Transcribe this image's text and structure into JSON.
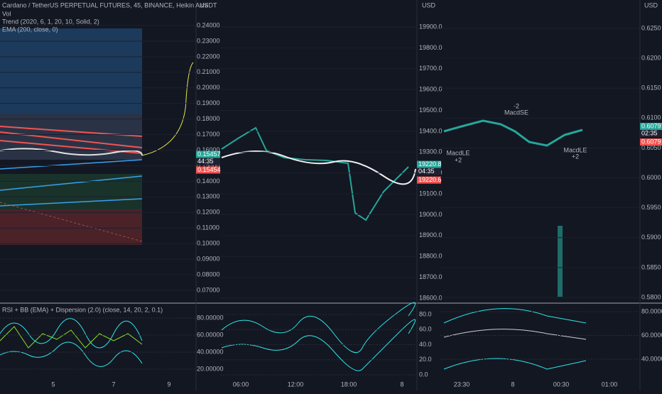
{
  "panels": [
    {
      "header": {
        "symbol": "Cardano / TetherUS PERPETUAL FUTURES, 45, BINANCE, Heikin Ashi",
        "indicators": [
          "Vol",
          "Trend (2020, 6, 1, 20, 10, Solid, 2)",
          "EMA (200, close, 0)"
        ]
      },
      "currency": "USDT",
      "price_ticks": [
        {
          "value": 0.24,
          "label": "0.24000"
        },
        {
          "value": 0.23,
          "label": "0.23000"
        },
        {
          "value": 0.22,
          "label": "0.22000"
        },
        {
          "value": 0.21,
          "label": "0.21000"
        },
        {
          "value": 0.2,
          "label": "0.20000"
        },
        {
          "value": 0.19,
          "label": "0.19000"
        },
        {
          "value": 0.18,
          "label": "0.18000"
        },
        {
          "value": 0.17,
          "label": "0.17000"
        },
        {
          "value": 0.16,
          "label": "0.16000"
        },
        {
          "value": 0.15,
          "label": "0.15000"
        },
        {
          "value": 0.14,
          "label": "0.14000"
        },
        {
          "value": 0.13,
          "label": "0.13000"
        },
        {
          "value": 0.12,
          "label": "0.12000"
        },
        {
          "value": 0.11,
          "label": "0.11000"
        },
        {
          "value": 0.1,
          "label": "0.10000"
        },
        {
          "value": 0.09,
          "label": "0.09000"
        },
        {
          "value": 0.08,
          "label": "0.08000"
        },
        {
          "value": 0.07,
          "label": "0.07000"
        }
      ],
      "last_price": {
        "value": 0.15457,
        "label": "0.15457"
      },
      "countdown": "44:35",
      "prev_price": {
        "value": 0.15454,
        "label": "0.15454"
      },
      "oscillator": {
        "title": "RSI + BB (EMA) + Dispersion (2.0) (close, 14, 20, 2, 0.1)",
        "ticks": [
          {
            "value": 80,
            "label": "80.00000"
          },
          {
            "value": 60,
            "label": "60.00000"
          },
          {
            "value": 40,
            "label": "40.00000"
          },
          {
            "value": 20,
            "label": "20.00000"
          }
        ]
      },
      "time_labels": [
        "5",
        "7",
        "9"
      ]
    },
    {
      "currency": "USD",
      "price_ticks": [
        {
          "value": 19900,
          "label": "19900.0"
        },
        {
          "value": 19800,
          "label": "19800.0"
        },
        {
          "value": 19700,
          "label": "19700.0"
        },
        {
          "value": 19600,
          "label": "19600.0"
        },
        {
          "value": 19500,
          "label": "19500.0"
        },
        {
          "value": 19400,
          "label": "19400.0"
        },
        {
          "value": 19300,
          "label": "19300.0"
        },
        {
          "value": 19200,
          "label": "19200.0"
        },
        {
          "value": 19100,
          "label": "19100.0"
        },
        {
          "value": 19000,
          "label": "19000.0"
        },
        {
          "value": 18900,
          "label": "18900.0"
        },
        {
          "value": 18800,
          "label": "18800.0"
        },
        {
          "value": 18700,
          "label": "18700.0"
        },
        {
          "value": 18600,
          "label": "18600.0"
        }
      ],
      "last_price": {
        "value": 19220.8,
        "label": "19220.8"
      },
      "countdown": "04:35",
      "prev_price": {
        "value": 19220.6,
        "label": "19220.6"
      },
      "oscillator": {
        "ticks": [
          {
            "value": 80,
            "label": "80.0"
          },
          {
            "value": 60,
            "label": "60.0"
          },
          {
            "value": 40,
            "label": "40.0"
          },
          {
            "value": 20,
            "label": "20.0"
          },
          {
            "value": 0,
            "label": "0.0"
          }
        ]
      },
      "time_labels": [
        "06:00",
        "12:00",
        "18:00",
        "8"
      ]
    },
    {
      "currency": "USD",
      "price_ticks": [
        {
          "value": 0.625,
          "label": "0.6250"
        },
        {
          "value": 0.62,
          "label": "0.6200"
        },
        {
          "value": 0.615,
          "label": "0.6150"
        },
        {
          "value": 0.61,
          "label": "0.6100"
        },
        {
          "value": 0.605,
          "label": "0.6050"
        },
        {
          "value": 0.6,
          "label": "0.6000"
        },
        {
          "value": 0.595,
          "label": "0.5950"
        },
        {
          "value": 0.59,
          "label": "0.5900"
        },
        {
          "value": 0.585,
          "label": "0.5850"
        },
        {
          "value": 0.58,
          "label": "0.5800"
        }
      ],
      "last_price": {
        "value": 0.6079,
        "label": "0.6079"
      },
      "countdown": "02:35",
      "prev_price": {
        "value": 0.6079,
        "label": "0.6079"
      },
      "annotations": [
        "-2",
        "MacdSE",
        "MacdLE",
        "+2",
        "MacdLE",
        "+2"
      ],
      "oscillator": {
        "ticks": [
          {
            "value": 80,
            "label": "80.00000"
          },
          {
            "value": 60,
            "label": "60.00000"
          },
          {
            "value": 40,
            "label": "40.00000"
          }
        ]
      },
      "time_labels": [
        "23:30",
        "8",
        "00:30",
        "01:00"
      ]
    }
  ]
}
